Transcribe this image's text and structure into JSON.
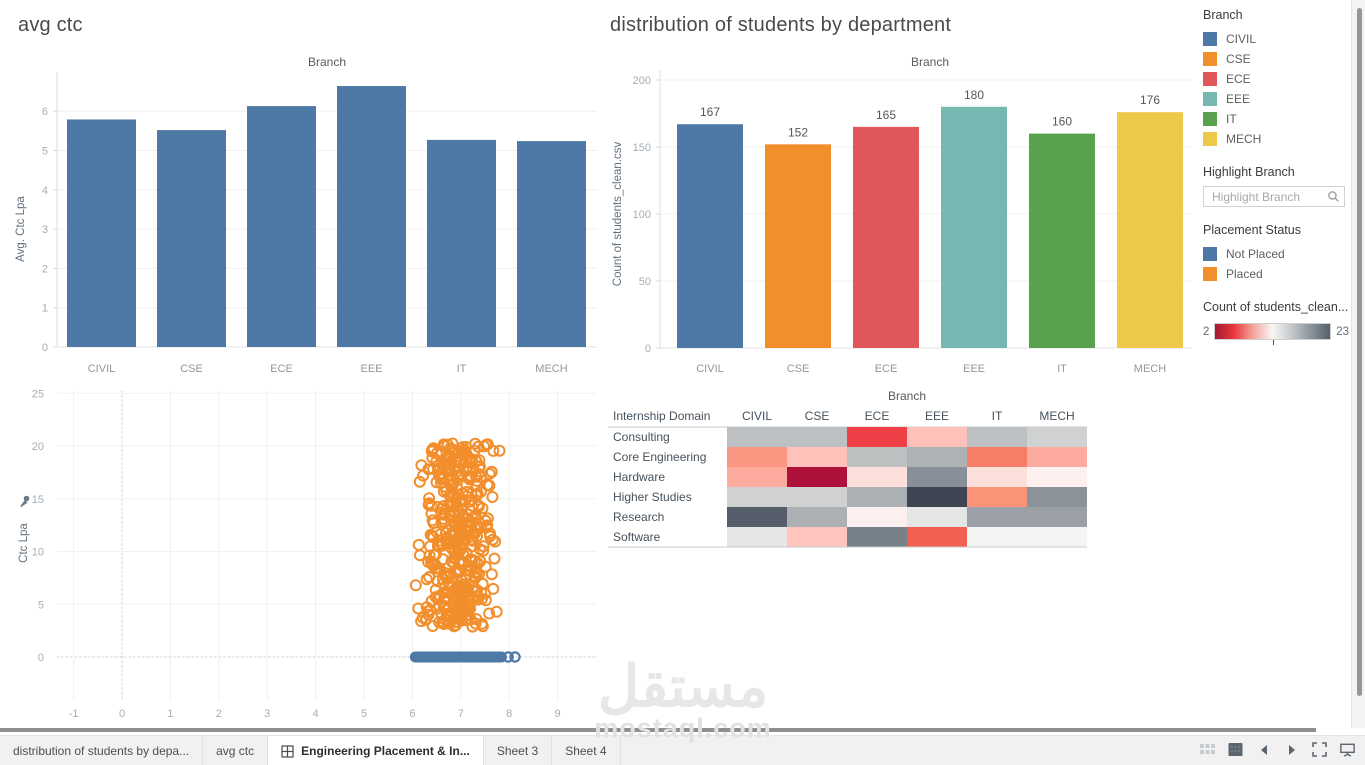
{
  "titles": {
    "avg_ctc": "avg ctc",
    "distribution": "distribution of students by department"
  },
  "sidebar": {
    "branch_legend": {
      "title": "Branch",
      "items": [
        {
          "label": "CIVIL",
          "color": "#4e79a7"
        },
        {
          "label": "CSE",
          "color": "#f28e2b"
        },
        {
          "label": "ECE",
          "color": "#e15759"
        },
        {
          "label": "EEE",
          "color": "#76b7b2"
        },
        {
          "label": "IT",
          "color": "#59a14f"
        },
        {
          "label": "MECH",
          "color": "#edc949"
        }
      ]
    },
    "highlight": {
      "title": "Highlight Branch",
      "placeholder": "Highlight Branch"
    },
    "placement_legend": {
      "title": "Placement Status",
      "items": [
        {
          "label": "Not Placed",
          "color": "#4e79a7"
        },
        {
          "label": "Placed",
          "color": "#f28e2b"
        }
      ]
    },
    "gradient_legend": {
      "title": "Count of students_clean...",
      "min": "2",
      "max": "23",
      "colors": [
        "#a31a31",
        "#e8383d",
        "#f4a79d",
        "#f8f6f5",
        "#c3c8cb",
        "#8a949c",
        "#51606e"
      ]
    }
  },
  "tabs": [
    {
      "label": "distribution of students by depa...",
      "active": false
    },
    {
      "label": "avg ctc",
      "active": false
    },
    {
      "label": "Engineering Placement & In...",
      "active": true,
      "icon": "dashboard-grid"
    },
    {
      "label": "Sheet 3",
      "active": false
    },
    {
      "label": "Sheet 4",
      "active": false
    }
  ],
  "status_bar": {
    "icons": [
      "sheet-sorter",
      "filmstrip",
      "previous-sheet",
      "next-sheet",
      "fullscreen",
      "presentation-mode"
    ]
  },
  "watermark": {
    "arabic": "مستقل",
    "latin": "mostaql.com"
  },
  "chart_data": [
    {
      "id": "avg_ctc_bar",
      "type": "bar",
      "title": "Branch",
      "ylabel": "Avg. Ctc Lpa",
      "categories": [
        "CIVIL",
        "CSE",
        "ECE",
        "EEE",
        "IT",
        "MECH"
      ],
      "values": [
        5.79,
        5.52,
        6.13,
        6.64,
        5.27,
        5.24
      ],
      "bar_color": "#4e79a7",
      "yticks": [
        0,
        1,
        2,
        3,
        4,
        5,
        6
      ],
      "ylim": [
        0,
        6.97
      ],
      "grid": true,
      "legend_position": "none"
    },
    {
      "id": "students_by_department_bar",
      "type": "bar",
      "title": "Branch",
      "ylabel": "Count of students_clean.csv",
      "categories": [
        "CIVIL",
        "CSE",
        "ECE",
        "EEE",
        "IT",
        "MECH"
      ],
      "values": [
        167,
        152,
        165,
        180,
        160,
        176
      ],
      "colors": [
        "#4e79a7",
        "#f28e2b",
        "#e15759",
        "#76b7b2",
        "#59a14f",
        "#edc949"
      ],
      "yticks": [
        0,
        50,
        100,
        150,
        200
      ],
      "ylim": [
        0,
        206
      ],
      "value_labels": true,
      "grid": true
    },
    {
      "id": "ctc_scatter",
      "type": "scatter",
      "ylabel": "Ctc Lpa",
      "xticks": [
        -1,
        0,
        1,
        2,
        3,
        4,
        5,
        6,
        7,
        8,
        9
      ],
      "yticks": [
        0,
        5,
        10,
        15,
        20,
        25
      ],
      "xlim": [
        -1.45,
        9.8
      ],
      "ylim": [
        -3.5,
        25.5
      ],
      "series": [
        {
          "name": "Placed",
          "color": "#f28e2b",
          "marker": "open-circle",
          "cluster": {
            "n": 430,
            "x_min": 6.1,
            "x_max": 7.82,
            "y_min": 2.8,
            "y_max": 20.3,
            "seed": 20
          },
          "outliers": [
            [
              6.07,
              6.8
            ],
            [
              6.12,
              4.6
            ],
            [
              6.18,
              3.4
            ]
          ]
        },
        {
          "name": "Not Placed",
          "color": "#4e79a7",
          "marker": "open-circle",
          "band": {
            "x_min": 6.05,
            "x_max": 7.85,
            "y": 0
          },
          "points": [
            [
              7.98,
              0
            ],
            [
              8.12,
              0
            ]
          ]
        }
      ]
    },
    {
      "id": "internship_domain_heatmap",
      "type": "heatmap",
      "title": "Branch",
      "row_header": "Internship Domain",
      "columns": [
        "CIVIL",
        "CSE",
        "ECE",
        "EEE",
        "IT",
        "MECH"
      ],
      "rows": [
        "Consulting",
        "Core Engineering",
        "Hardware",
        "Higher Studies",
        "Research",
        "Software"
      ],
      "color_scale": {
        "min": 2,
        "max": 23
      },
      "cell_colors": [
        [
          "#bcc0c2",
          "#bcc0c2",
          "#ee4046",
          "#ffc2bb",
          "#bcc0c2",
          "#d0d2d2"
        ],
        [
          "#fa9681",
          "#ffc2bb",
          "#bcc0c1",
          "#adb2b4",
          "#f67d68",
          "#fdab9e"
        ],
        [
          "#fdab9e",
          "#ae123b",
          "#fcdedb",
          "#878f98",
          "#fcdedb",
          "#fdf0ef"
        ],
        [
          "#d0d2d2",
          "#d0d2d2",
          "#abb1b2",
          "#3e4654",
          "#fa9377",
          "#8a929a"
        ],
        [
          "#555e6a",
          "#adb1b3",
          "#fbf0ef",
          "#e4e5e5",
          "#9aa0a6",
          "#9aa0a6"
        ],
        [
          "#e5e5e5",
          "#ffc4bd",
          "#76818a",
          "#f26052",
          "#f3f5f4",
          "#f3f5f4"
        ]
      ]
    }
  ]
}
